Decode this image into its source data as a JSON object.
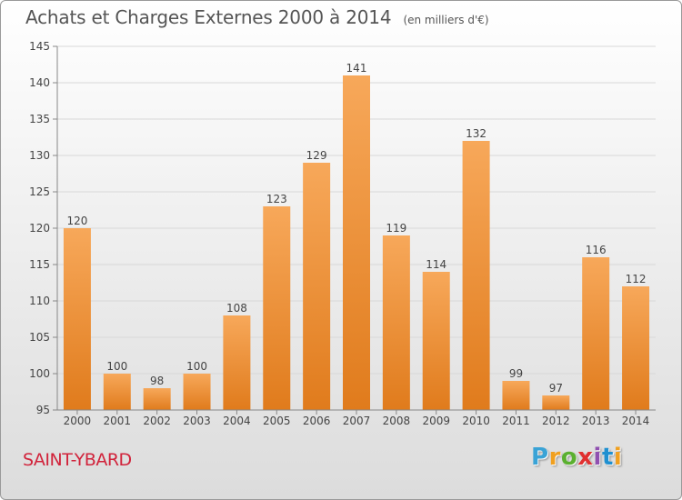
{
  "header": {
    "title": "Achats et Charges Externes 2000 à 2014",
    "unit": "(en milliers d'€)"
  },
  "footer": {
    "commune": "SAINT-YBARD",
    "brand_letters": [
      "P",
      "r",
      "o",
      "x",
      "i",
      "t",
      "i"
    ],
    "brand_colors": [
      "#3aa3d6",
      "#f0a020",
      "#5bb030",
      "#e03030",
      "#9050b0",
      "#2090d0",
      "#f0a020"
    ]
  },
  "colors": {
    "bar_light": "#f7a85a",
    "bar_dark": "#e07b1c",
    "grid": "#d8d8d8",
    "axis": "#888888",
    "text": "#444444"
  },
  "chart_data": {
    "type": "bar",
    "title": "Achats et Charges Externes 2000 à 2014",
    "subtitle": "(en milliers d'€)",
    "xlabel": "",
    "ylabel": "",
    "categories": [
      "2000",
      "2001",
      "2002",
      "2003",
      "2004",
      "2005",
      "2006",
      "2007",
      "2008",
      "2009",
      "2010",
      "2011",
      "2012",
      "2013",
      "2014"
    ],
    "values": [
      120,
      100,
      98,
      100,
      108,
      123,
      129,
      141,
      119,
      114,
      132,
      99,
      97,
      116,
      112
    ],
    "ylim": [
      95,
      145
    ],
    "yticks": [
      95,
      100,
      105,
      110,
      115,
      120,
      125,
      130,
      135,
      140,
      145
    ],
    "grid": true,
    "data_labels": true
  }
}
